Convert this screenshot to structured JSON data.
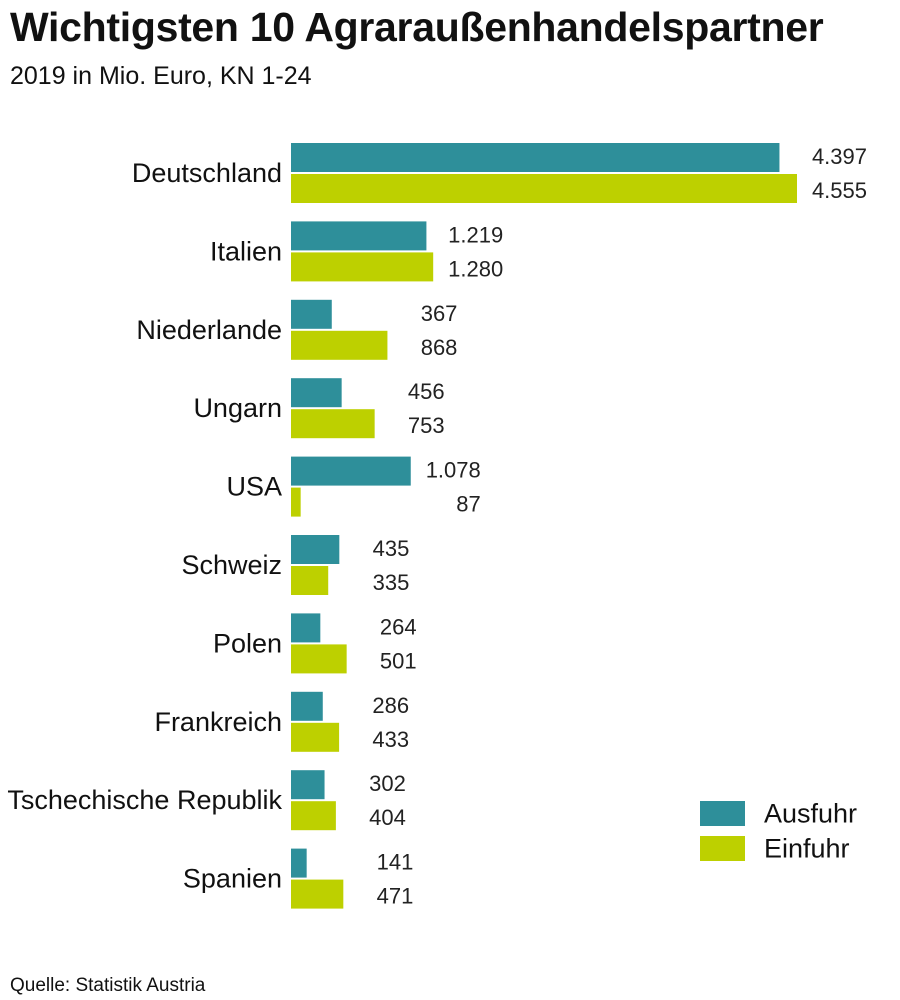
{
  "title": "Wichtigsten 10 Agraraußenhandelspartner",
  "subtitle": "2019 in Mio. Euro, KN 1-24",
  "source": "Quelle: Statistik Austria",
  "chart_data": {
    "type": "bar",
    "orientation": "horizontal",
    "title": "Wichtigsten 10 Agraraußenhandelspartner",
    "subtitle": "2019 in Mio. Euro, KN 1-24",
    "categories": [
      "Deutschland",
      "Italien",
      "Niederlande",
      "Ungarn",
      "USA",
      "Schweiz",
      "Polen",
      "Frankreich",
      "Tschechische Republik",
      "Spanien"
    ],
    "series": [
      {
        "name": "Ausfuhr",
        "color": "#2e8f9a",
        "values": [
          4397,
          1219,
          367,
          456,
          1078,
          435,
          264,
          286,
          302,
          141
        ],
        "labels": [
          "4.397",
          "1.219",
          "367",
          "456",
          "1.078",
          "435",
          "264",
          "286",
          "302",
          "141"
        ]
      },
      {
        "name": "Einfuhr",
        "color": "#bdd000",
        "values": [
          4555,
          1280,
          868,
          753,
          87,
          335,
          501,
          433,
          404,
          471
        ],
        "labels": [
          "4.555",
          "1.280",
          "868",
          "753",
          "87",
          "335",
          "501",
          "433",
          "404",
          "471"
        ]
      }
    ],
    "xlim": [
      0,
      4555
    ],
    "grid": false,
    "legend_position": "bottom-right"
  }
}
